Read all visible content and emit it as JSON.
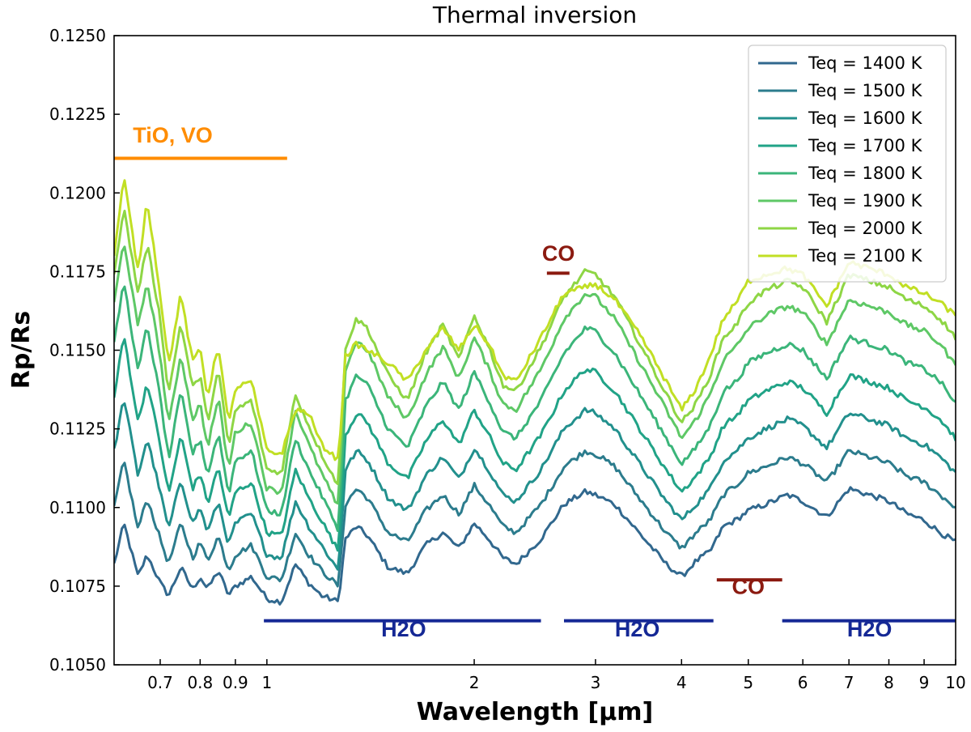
{
  "chart_data": {
    "type": "line",
    "title": "Thermal inversion",
    "xlabel": "Wavelength [μm]",
    "ylabel": "Rp/Rs",
    "xscale": "log",
    "xlim": [
      0.6,
      10
    ],
    "ylim": [
      0.105,
      0.125
    ],
    "y_ticks": [
      0.105,
      0.1075,
      0.11,
      0.1125,
      0.115,
      0.1175,
      0.12,
      0.1225,
      0.125
    ],
    "y_tick_labels": [
      "0.1050",
      "0.1075",
      "0.1100",
      "0.1125",
      "0.1150",
      "0.1175",
      "0.1200",
      "0.1225",
      "0.1250"
    ],
    "x_ticks": [
      0.7,
      0.8,
      0.9,
      1,
      2,
      3,
      4,
      5,
      6,
      7,
      8,
      9,
      10
    ],
    "x_tick_labels": [
      "0.7",
      "0.8",
      "0.9",
      "1",
      "2",
      "3",
      "4",
      "5",
      "6",
      "7",
      "8",
      "9",
      "10"
    ],
    "legend_position": "top-right",
    "x": [
      0.6,
      0.62,
      0.65,
      0.67,
      0.7,
      0.72,
      0.75,
      0.78,
      0.8,
      0.82,
      0.85,
      0.88,
      0.9,
      0.95,
      1.0,
      1.05,
      1.1,
      1.15,
      1.2,
      1.27,
      1.3,
      1.35,
      1.4,
      1.5,
      1.6,
      1.7,
      1.8,
      1.9,
      2.0,
      2.1,
      2.2,
      2.3,
      2.5,
      2.7,
      2.9,
      3.0,
      3.2,
      3.5,
      3.8,
      4.0,
      4.2,
      4.4,
      4.6,
      4.8,
      5.0,
      5.3,
      5.7,
      6.0,
      6.5,
      7.0,
      7.5,
      8.0,
      8.5,
      9.0,
      9.5,
      10.0
    ],
    "series": [
      {
        "name": "Teq = 1400 K",
        "color": "#31688e",
        "values": [
          0.1082,
          0.1095,
          0.1078,
          0.1085,
          0.1076,
          0.1072,
          0.1081,
          0.1074,
          0.1078,
          0.1074,
          0.108,
          0.1072,
          0.1075,
          0.1078,
          0.1071,
          0.107,
          0.1082,
          0.1076,
          0.1072,
          0.107,
          0.109,
          0.1094,
          0.1091,
          0.1081,
          0.1079,
          0.1088,
          0.1092,
          0.1087,
          0.1095,
          0.109,
          0.1084,
          0.1082,
          0.109,
          0.1101,
          0.1105,
          0.1104,
          0.1101,
          0.1091,
          0.1082,
          0.1078,
          0.1083,
          0.1086,
          0.1094,
          0.1096,
          0.1099,
          0.1101,
          0.1104,
          0.1102,
          0.1097,
          0.1106,
          0.1104,
          0.1102,
          0.1098,
          0.1096,
          0.1092,
          0.1089
        ]
      },
      {
        "name": "Teq = 1500 K",
        "color": "#2c7c8d",
        "values": [
          0.11,
          0.1115,
          0.1093,
          0.1103,
          0.109,
          0.1082,
          0.1095,
          0.1084,
          0.1089,
          0.1083,
          0.1091,
          0.108,
          0.1085,
          0.1088,
          0.1078,
          0.1077,
          0.1092,
          0.1085,
          0.108,
          0.1075,
          0.1101,
          0.1106,
          0.1103,
          0.1092,
          0.1089,
          0.1099,
          0.1104,
          0.1098,
          0.1107,
          0.1101,
          0.1094,
          0.1092,
          0.1101,
          0.1113,
          0.1118,
          0.1117,
          0.1113,
          0.1102,
          0.1092,
          0.1087,
          0.1092,
          0.1096,
          0.1104,
          0.1107,
          0.1111,
          0.1113,
          0.1116,
          0.1114,
          0.1108,
          0.1118,
          0.1116,
          0.1114,
          0.111,
          0.1108,
          0.1104,
          0.11
        ]
      },
      {
        "name": "Teq = 1600 K",
        "color": "#22908d",
        "values": [
          0.1118,
          0.1135,
          0.111,
          0.1122,
          0.1105,
          0.1093,
          0.1109,
          0.1095,
          0.11,
          0.1092,
          0.1102,
          0.1088,
          0.1095,
          0.1098,
          0.1085,
          0.1084,
          0.1102,
          0.1094,
          0.1088,
          0.108,
          0.1112,
          0.1118,
          0.1115,
          0.1103,
          0.1099,
          0.111,
          0.1116,
          0.1109,
          0.1119,
          0.1112,
          0.1104,
          0.1102,
          0.1112,
          0.1125,
          0.1131,
          0.113,
          0.1125,
          0.1113,
          0.1102,
          0.1096,
          0.1101,
          0.1106,
          0.1115,
          0.1118,
          0.1122,
          0.1125,
          0.1128,
          0.1126,
          0.1119,
          0.113,
          0.1128,
          0.1126,
          0.1122,
          0.112,
          0.1116,
          0.1111
        ]
      },
      {
        "name": "Teq = 1700 K",
        "color": "#21a387",
        "values": [
          0.1135,
          0.1155,
          0.1127,
          0.114,
          0.112,
          0.1104,
          0.1123,
          0.1106,
          0.1111,
          0.1101,
          0.1113,
          0.1096,
          0.1105,
          0.1108,
          0.1092,
          0.1091,
          0.1112,
          0.1103,
          0.1096,
          0.1086,
          0.1123,
          0.113,
          0.1127,
          0.1114,
          0.1109,
          0.1121,
          0.1128,
          0.112,
          0.1131,
          0.1123,
          0.1114,
          0.1112,
          0.1123,
          0.1137,
          0.1144,
          0.1143,
          0.1137,
          0.1124,
          0.1112,
          0.1105,
          0.111,
          0.1116,
          0.1126,
          0.1129,
          0.1134,
          0.1137,
          0.114,
          0.1138,
          0.113,
          0.1142,
          0.114,
          0.1138,
          0.1134,
          0.1132,
          0.1128,
          0.1122
        ]
      },
      {
        "name": "Teq = 1800 K",
        "color": "#3bb57a",
        "values": [
          0.1152,
          0.1172,
          0.1143,
          0.1158,
          0.1135,
          0.1115,
          0.1137,
          0.1117,
          0.1122,
          0.111,
          0.1124,
          0.1104,
          0.1115,
          0.1118,
          0.1099,
          0.1098,
          0.1122,
          0.1112,
          0.1104,
          0.1093,
          0.1134,
          0.1142,
          0.1139,
          0.1125,
          0.1119,
          0.1132,
          0.114,
          0.1131,
          0.1143,
          0.1134,
          0.1124,
          0.1122,
          0.1134,
          0.1149,
          0.1157,
          0.1156,
          0.1149,
          0.1135,
          0.1122,
          0.1114,
          0.1119,
          0.1126,
          0.1137,
          0.114,
          0.1146,
          0.1149,
          0.1152,
          0.115,
          0.1141,
          0.1154,
          0.1152,
          0.115,
          0.1146,
          0.1144,
          0.114,
          0.1133
        ]
      },
      {
        "name": "Teq = 1900 K",
        "color": "#5ec866",
        "values": [
          0.1165,
          0.1185,
          0.1157,
          0.1172,
          0.1148,
          0.1126,
          0.1149,
          0.1128,
          0.1133,
          0.1119,
          0.1135,
          0.1112,
          0.1124,
          0.1127,
          0.1106,
          0.1105,
          0.1131,
          0.112,
          0.1111,
          0.11,
          0.1144,
          0.1153,
          0.115,
          0.1135,
          0.1128,
          0.1142,
          0.1151,
          0.1141,
          0.1154,
          0.1144,
          0.1133,
          0.1131,
          0.1144,
          0.116,
          0.1168,
          0.1167,
          0.116,
          0.1145,
          0.1131,
          0.1122,
          0.1128,
          0.1136,
          0.1147,
          0.1151,
          0.1157,
          0.1161,
          0.1164,
          0.1162,
          0.1152,
          0.1166,
          0.1164,
          0.1162,
          0.1158,
          0.1156,
          0.1152,
          0.1145
        ]
      },
      {
        "name": "Teq = 2000 K",
        "color": "#8ed645",
        "values": [
          0.1175,
          0.1195,
          0.1168,
          0.1184,
          0.116,
          0.1136,
          0.1159,
          0.1138,
          0.1142,
          0.1127,
          0.1144,
          0.1119,
          0.1131,
          0.1134,
          0.1112,
          0.1111,
          0.1136,
          0.1126,
          0.1117,
          0.1107,
          0.1151,
          0.116,
          0.1157,
          0.1142,
          0.1134,
          0.1149,
          0.1158,
          0.1147,
          0.1161,
          0.1151,
          0.1139,
          0.1137,
          0.1151,
          0.1167,
          0.1175,
          0.1174,
          0.1167,
          0.1151,
          0.1136,
          0.1127,
          0.1133,
          0.1142,
          0.1154,
          0.1158,
          0.1165,
          0.1169,
          0.1172,
          0.117,
          0.1159,
          0.1174,
          0.1172,
          0.117,
          0.1166,
          0.1164,
          0.116,
          0.1154
        ]
      },
      {
        "name": "Teq = 2100 K",
        "color": "#c1df24",
        "values": [
          0.118,
          0.1205,
          0.1175,
          0.1198,
          0.1168,
          0.1145,
          0.1168,
          0.1146,
          0.1151,
          0.1135,
          0.1152,
          0.1126,
          0.1138,
          0.114,
          0.1118,
          0.1117,
          0.1131,
          0.113,
          0.112,
          0.1115,
          0.1148,
          0.1152,
          0.115,
          0.1146,
          0.114,
          0.115,
          0.1157,
          0.115,
          0.1158,
          0.1152,
          0.1142,
          0.114,
          0.1154,
          0.1168,
          0.117,
          0.1171,
          0.1166,
          0.1154,
          0.114,
          0.1131,
          0.1138,
          0.1148,
          0.116,
          0.1165,
          0.1172,
          0.1174,
          0.1176,
          0.1174,
          0.1164,
          0.1178,
          0.1176,
          0.1174,
          0.117,
          0.1168,
          0.1165,
          0.1161
        ]
      }
    ],
    "annotations": [
      {
        "id": "tio-vo",
        "text": "TiO, VO",
        "color": "#ff8c00",
        "x_range": [
          0.6,
          1.07
        ],
        "y": 0.1211,
        "label_x": 0.73,
        "label_y": 0.1216
      },
      {
        "id": "co-top",
        "text": "CO",
        "color": "#8b1a10",
        "x_range": [
          2.55,
          2.75
        ],
        "y": 0.11745,
        "label_x": 2.65,
        "label_y": 0.11785
      },
      {
        "id": "co-bottom",
        "text": "CO",
        "color": "#8b1a10",
        "x_range": [
          4.5,
          5.6
        ],
        "y": 0.1077,
        "label_x": 5.0,
        "label_y": 0.10725
      },
      {
        "id": "h2o-1",
        "text": "H2O",
        "color": "#152895",
        "x_range": [
          0.99,
          2.5
        ],
        "y": 0.1064,
        "label_x": 1.58,
        "label_y": 0.1059
      },
      {
        "id": "h2o-2",
        "text": "H2O",
        "color": "#152895",
        "x_range": [
          2.7,
          4.45
        ],
        "y": 0.1064,
        "label_x": 3.45,
        "label_y": 0.1059
      },
      {
        "id": "h2o-3",
        "text": "H2O",
        "color": "#152895",
        "x_range": [
          5.6,
          10.0
        ],
        "y": 0.1064,
        "label_x": 7.5,
        "label_y": 0.1059
      }
    ]
  }
}
